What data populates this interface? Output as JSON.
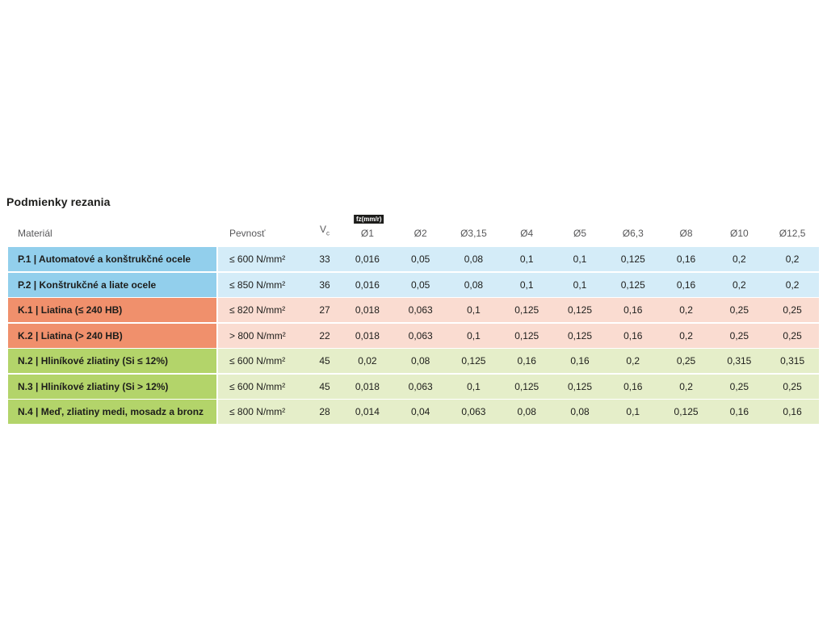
{
  "page": {
    "title": "Podmienky rezania"
  },
  "table": {
    "header": {
      "material": "Materiál",
      "strength": "Pevnosť",
      "vc": {
        "base": "V",
        "sub": "c"
      },
      "feed_badge": "fz(mm/r)",
      "diameters": [
        "Ø1",
        "Ø2",
        "Ø3,15",
        "Ø4",
        "Ø5",
        "Ø6,3",
        "Ø8",
        "Ø10",
        "Ø12,5"
      ]
    },
    "rows": [
      {
        "group": "blue",
        "material": "P.1 | Automatové a konštrukčné ocele",
        "strength": "≤ 600 N/mm²",
        "vc": "33",
        "values": [
          "0,016",
          "0,05",
          "0,08",
          "0,1",
          "0,1",
          "0,125",
          "0,16",
          "0,2",
          "0,2"
        ]
      },
      {
        "group": "blue",
        "material": "P.2 | Konštrukčné a liate ocele",
        "strength": "≤ 850 N/mm²",
        "vc": "36",
        "values": [
          "0,016",
          "0,05",
          "0,08",
          "0,1",
          "0,1",
          "0,125",
          "0,16",
          "0,2",
          "0,2"
        ]
      },
      {
        "group": "orange",
        "material": "K.1 | Liatina (≤ 240 HB)",
        "strength": "≤ 820 N/mm²",
        "vc": "27",
        "values": [
          "0,018",
          "0,063",
          "0,1",
          "0,125",
          "0,125",
          "0,16",
          "0,2",
          "0,25",
          "0,25"
        ]
      },
      {
        "group": "orange",
        "material": "K.2 | Liatina (> 240 HB)",
        "strength": "> 800 N/mm²",
        "vc": "22",
        "values": [
          "0,018",
          "0,063",
          "0,1",
          "0,125",
          "0,125",
          "0,16",
          "0,2",
          "0,25",
          "0,25"
        ]
      },
      {
        "group": "green",
        "material": "N.2 | Hliníkové zliatiny (Si ≤ 12%)",
        "strength": "≤ 600 N/mm²",
        "vc": "45",
        "values": [
          "0,02",
          "0,08",
          "0,125",
          "0,16",
          "0,16",
          "0,2",
          "0,25",
          "0,315",
          "0,315"
        ]
      },
      {
        "group": "green",
        "material": "N.3 | Hliníkové zliatiny (Si > 12%)",
        "strength": "≤ 600 N/mm²",
        "vc": "45",
        "values": [
          "0,018",
          "0,063",
          "0,1",
          "0,125",
          "0,125",
          "0,16",
          "0,2",
          "0,25",
          "0,25"
        ]
      },
      {
        "group": "green",
        "material": "N.4 | Meď, zliatiny medi, mosadz a bronz",
        "strength": "≤ 800 N/mm²",
        "vc": "28",
        "values": [
          "0,014",
          "0,04",
          "0,063",
          "0,08",
          "0,08",
          "0,1",
          "0,125",
          "0,16",
          "0,16"
        ]
      }
    ]
  },
  "colors": {
    "text": "#1d1d1b",
    "header_text": "#58585a",
    "badge_bg": "#1d1d1b",
    "badge_text": "#ffffff",
    "blue_material": "#92cfec",
    "blue_body": "#d4ecf8",
    "orange_material": "#f0906c",
    "orange_body": "#fadcd1",
    "green_material": "#b3d46a",
    "green_body": "#e5eec9"
  }
}
